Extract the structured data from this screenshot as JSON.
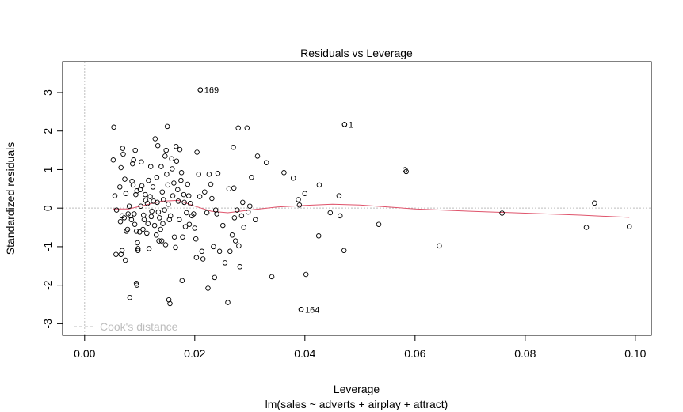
{
  "chart_data": {
    "type": "scatter",
    "title": "Residuals vs Leverage",
    "xlabel": "Leverage",
    "subtitle": "lm(sales ~ adverts + airplay + attract)",
    "ylabel": "Standardized residuals",
    "xlim": [
      -0.004,
      0.1029
    ],
    "ylim": [
      -3.3,
      3.8
    ],
    "x_ticks": [
      0.0,
      0.02,
      0.04,
      0.06,
      0.08,
      0.1
    ],
    "x_tick_labels": [
      "0.00",
      "0.02",
      "0.04",
      "0.06",
      "0.08",
      "0.10"
    ],
    "y_ticks": [
      -3,
      -2,
      -1,
      0,
      1,
      2,
      3
    ],
    "y_tick_labels": [
      "-3",
      "-2",
      "-1",
      "0",
      "1",
      "2",
      "3"
    ],
    "reference_lines": {
      "h": 0,
      "v": 0,
      "color": "#bebebe",
      "style": "dotted"
    },
    "legend": {
      "label": "Cook's distance",
      "position": "bottom-left",
      "color": "#bebebe"
    },
    "point_color": "#000000",
    "smooth_color": "#df536b",
    "labeled_points": [
      {
        "label": "169",
        "x": 0.021,
        "y": 3.07
      },
      {
        "label": "1",
        "x": 0.0472,
        "y": 2.17
      },
      {
        "label": "164",
        "x": 0.0393,
        "y": -2.63
      }
    ],
    "points": [
      [
        0.0053,
        2.1
      ],
      [
        0.0052,
        1.25
      ],
      [
        0.0055,
        0.32
      ],
      [
        0.0058,
        -0.05
      ],
      [
        0.0057,
        -1.2
      ],
      [
        0.0066,
        -1.2
      ],
      [
        0.0068,
        -1.1
      ],
      [
        0.0065,
        -0.35
      ],
      [
        0.0068,
        -0.2
      ],
      [
        0.0064,
        0.55
      ],
      [
        0.0069,
        1.55
      ],
      [
        0.007,
        1.4
      ],
      [
        0.0066,
        1.05
      ],
      [
        0.0073,
        0.75
      ],
      [
        0.0075,
        0.38
      ],
      [
        0.0072,
        -0.25
      ],
      [
        0.0078,
        -0.55
      ],
      [
        0.0076,
        -0.6
      ],
      [
        0.0074,
        -1.35
      ],
      [
        0.0082,
        -2.32
      ],
      [
        0.0079,
        -0.15
      ],
      [
        0.0083,
        -0.2
      ],
      [
        0.0085,
        -0.3
      ],
      [
        0.0081,
        0.05
      ],
      [
        0.0086,
        0.7
      ],
      [
        0.0088,
        0.6
      ],
      [
        0.0087,
        1.15
      ],
      [
        0.0089,
        1.25
      ],
      [
        0.0092,
        1.5
      ],
      [
        0.0093,
        0.35
      ],
      [
        0.0095,
        0.45
      ],
      [
        0.009,
        -0.15
      ],
      [
        0.0091,
        -0.42
      ],
      [
        0.0094,
        -0.6
      ],
      [
        0.0096,
        -0.9
      ],
      [
        0.0097,
        -1.05
      ],
      [
        0.0094,
        -1.95
      ],
      [
        0.0095,
        -2.0
      ],
      [
        0.0097,
        -1.1
      ],
      [
        0.01,
        -0.62
      ],
      [
        0.0102,
        0.05
      ],
      [
        0.0101,
        0.48
      ],
      [
        0.0104,
        0.58
      ],
      [
        0.0103,
        1.2
      ],
      [
        0.0106,
        -0.55
      ],
      [
        0.0108,
        -0.3
      ],
      [
        0.0107,
        -0.18
      ],
      [
        0.011,
        0.35
      ],
      [
        0.0111,
        0.2
      ],
      [
        0.0114,
        0.12
      ],
      [
        0.0115,
        -0.4
      ],
      [
        0.0113,
        -0.65
      ],
      [
        0.0117,
        -1.05
      ],
      [
        0.0116,
        0.72
      ],
      [
        0.012,
        1.08
      ],
      [
        0.0119,
        0.3
      ],
      [
        0.0122,
        -0.08
      ],
      [
        0.0121,
        -0.22
      ],
      [
        0.0124,
        0.55
      ],
      [
        0.0125,
        0.18
      ],
      [
        0.0127,
        -0.45
      ],
      [
        0.013,
        -0.7
      ],
      [
        0.0128,
        1.8
      ],
      [
        0.0133,
        1.62
      ],
      [
        0.0131,
        0.8
      ],
      [
        0.0132,
        0.15
      ],
      [
        0.0134,
        -0.1
      ],
      [
        0.0136,
        -0.25
      ],
      [
        0.0135,
        -0.85
      ],
      [
        0.0138,
        -0.55
      ],
      [
        0.014,
        -0.85
      ],
      [
        0.0139,
        1.08
      ],
      [
        0.0141,
        0.42
      ],
      [
        0.0143,
        0.22
      ],
      [
        0.0145,
        -0.05
      ],
      [
        0.0142,
        -0.4
      ],
      [
        0.0147,
        -0.95
      ],
      [
        0.0148,
        1.5
      ],
      [
        0.0146,
        1.35
      ],
      [
        0.015,
        2.12
      ],
      [
        0.0149,
        0.88
      ],
      [
        0.0151,
        0.6
      ],
      [
        0.0152,
        0.1
      ],
      [
        0.0154,
        -0.3
      ],
      [
        0.0153,
        -2.38
      ],
      [
        0.0155,
        -2.48
      ],
      [
        0.0156,
        -0.2
      ],
      [
        0.0158,
        1.28
      ],
      [
        0.0159,
        1.02
      ],
      [
        0.016,
        0.32
      ],
      [
        0.0162,
        0.65
      ],
      [
        0.0163,
        -0.75
      ],
      [
        0.0165,
        -1.02
      ],
      [
        0.0166,
        1.6
      ],
      [
        0.0167,
        1.22
      ],
      [
        0.0169,
        0.48
      ],
      [
        0.017,
        0.18
      ],
      [
        0.0172,
        -0.3
      ],
      [
        0.0173,
        1.52
      ],
      [
        0.0175,
        0.72
      ],
      [
        0.0176,
        0.92
      ],
      [
        0.0178,
        -0.75
      ],
      [
        0.0177,
        -1.88
      ],
      [
        0.018,
        0.35
      ],
      [
        0.0181,
        0.15
      ],
      [
        0.0183,
        -0.48
      ],
      [
        0.0185,
        -0.12
      ],
      [
        0.0187,
        0.62
      ],
      [
        0.0189,
        0.32
      ],
      [
        0.019,
        -0.42
      ],
      [
        0.0192,
        0.12
      ],
      [
        0.0195,
        -0.2
      ],
      [
        0.0198,
        -0.15
      ],
      [
        0.02,
        -0.52
      ],
      [
        0.0202,
        -0.8
      ],
      [
        0.0203,
        -1.28
      ],
      [
        0.0204,
        1.45
      ],
      [
        0.0207,
        0.88
      ],
      [
        0.0209,
        0.3
      ],
      [
        0.021,
        3.07
      ],
      [
        0.0213,
        -1.12
      ],
      [
        0.0215,
        -1.32
      ],
      [
        0.0218,
        0.42
      ],
      [
        0.0224,
        -2.08
      ],
      [
        0.0222,
        -0.12
      ],
      [
        0.0226,
        0.88
      ],
      [
        0.0229,
        0.62
      ],
      [
        0.0231,
        0.25
      ],
      [
        0.0234,
        -1.0
      ],
      [
        0.0236,
        -1.8
      ],
      [
        0.0238,
        -0.05
      ],
      [
        0.024,
        -0.15
      ],
      [
        0.0242,
        0.9
      ],
      [
        0.0245,
        -1.12
      ],
      [
        0.0251,
        -0.45
      ],
      [
        0.0255,
        -1.42
      ],
      [
        0.026,
        -2.45
      ],
      [
        0.0262,
        0.5
      ],
      [
        0.0264,
        -1.12
      ],
      [
        0.0268,
        -0.7
      ],
      [
        0.0272,
        -0.25
      ],
      [
        0.0271,
        0.52
      ],
      [
        0.0274,
        -0.85
      ],
      [
        0.027,
        1.58
      ],
      [
        0.0277,
        -0.05
      ],
      [
        0.0279,
        2.08
      ],
      [
        0.028,
        -0.98
      ],
      [
        0.0282,
        -1.52
      ],
      [
        0.0285,
        -0.2
      ],
      [
        0.0287,
        0.15
      ],
      [
        0.0289,
        -0.5
      ],
      [
        0.0295,
        2.08
      ],
      [
        0.0297,
        -0.1
      ],
      [
        0.03,
        0.05
      ],
      [
        0.0303,
        0.8
      ],
      [
        0.031,
        -0.3
      ],
      [
        0.0314,
        1.35
      ],
      [
        0.033,
        1.18
      ],
      [
        0.034,
        -1.78
      ],
      [
        0.0362,
        0.92
      ],
      [
        0.0379,
        0.78
      ],
      [
        0.0388,
        0.22
      ],
      [
        0.039,
        0.08
      ],
      [
        0.0393,
        -2.63
      ],
      [
        0.04,
        0.38
      ],
      [
        0.0402,
        -1.72
      ],
      [
        0.0426,
        0.6
      ],
      [
        0.0425,
        -0.72
      ],
      [
        0.0446,
        -0.12
      ],
      [
        0.0462,
        0.32
      ],
      [
        0.0464,
        -0.2
      ],
      [
        0.0472,
        2.17
      ],
      [
        0.0471,
        -1.1
      ],
      [
        0.0534,
        -0.42
      ],
      [
        0.0582,
        1.0
      ],
      [
        0.0584,
        0.95
      ],
      [
        0.0644,
        -0.98
      ],
      [
        0.0758,
        -0.13
      ],
      [
        0.0911,
        -0.5
      ],
      [
        0.0926,
        0.13
      ],
      [
        0.0989,
        -0.48
      ]
    ],
    "smooth_line": [
      [
        0.0052,
        -0.02
      ],
      [
        0.008,
        -0.02
      ],
      [
        0.011,
        0.08
      ],
      [
        0.014,
        0.18
      ],
      [
        0.017,
        0.2
      ],
      [
        0.02,
        0.05
      ],
      [
        0.023,
        -0.08
      ],
      [
        0.026,
        -0.12
      ],
      [
        0.03,
        -0.05
      ],
      [
        0.035,
        0.03
      ],
      [
        0.04,
        0.07
      ],
      [
        0.045,
        0.1
      ],
      [
        0.05,
        0.08
      ],
      [
        0.06,
        -0.02
      ],
      [
        0.07,
        -0.08
      ],
      [
        0.08,
        -0.13
      ],
      [
        0.09,
        -0.18
      ],
      [
        0.0989,
        -0.24
      ]
    ]
  }
}
